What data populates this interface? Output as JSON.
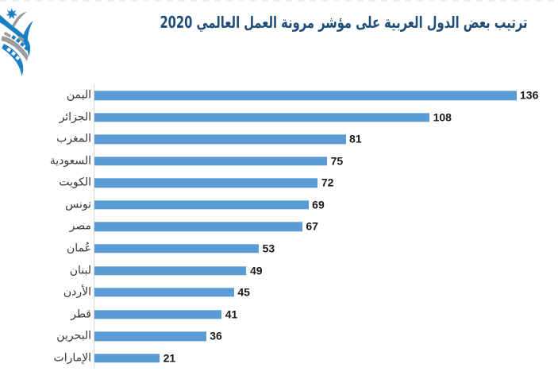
{
  "figure": {
    "background": "#ffffff",
    "top_border_style": "faint-dashed"
  },
  "logo": {
    "icon": "star-ribbon-emblem-icon",
    "colors": {
      "blue": "#1b7fc4",
      "gray": "#9c9c9c"
    }
  },
  "chart_data": {
    "type": "bar",
    "orientation": "horizontal",
    "title": "ترتيب بعض الدول العربية على مؤشر مرونة العمل العالمي 2020",
    "categories": [
      "اليمن",
      "الجزائر",
      "المغرب",
      "السعودية",
      "الكويت",
      "تونس",
      "مصر",
      "عُمان",
      "لبنان",
      "الأردن",
      "قطر",
      "البحرين",
      "الإمارات"
    ],
    "values": [
      136,
      108,
      81,
      75,
      72,
      69,
      67,
      53,
      49,
      45,
      41,
      36,
      21
    ],
    "xlim": [
      0,
      136
    ],
    "gridlines": false,
    "legend": false,
    "data_labels": "outside-end",
    "bar_color": "#5b9bd5",
    "title_color": "#1f4e79",
    "category_label_color": "#363636",
    "value_label_color": "#191919",
    "axis_line_color": "#d4d4d4"
  }
}
